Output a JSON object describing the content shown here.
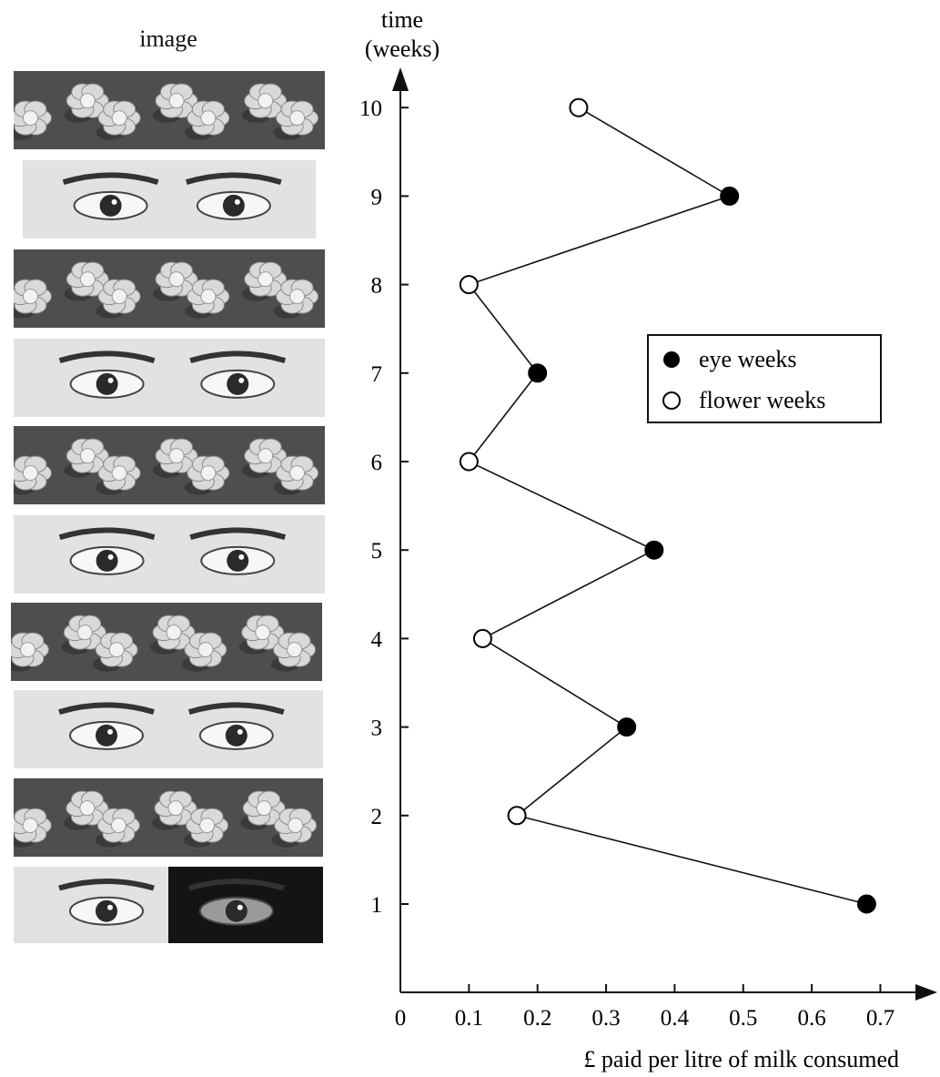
{
  "image_column": {
    "title": "image",
    "strips": [
      {
        "week": 10,
        "kind": "flower"
      },
      {
        "week": 9,
        "kind": "eye"
      },
      {
        "week": 8,
        "kind": "flower"
      },
      {
        "week": 7,
        "kind": "eye"
      },
      {
        "week": 6,
        "kind": "flower"
      },
      {
        "week": 5,
        "kind": "eye"
      },
      {
        "week": 4,
        "kind": "flower"
      },
      {
        "week": 3,
        "kind": "eye"
      },
      {
        "week": 2,
        "kind": "flower"
      },
      {
        "week": 1,
        "kind": "eye"
      }
    ]
  },
  "chart_data": {
    "type": "line",
    "ylabel_line1": "time",
    "ylabel_line2": "(weeks)",
    "xlabel": "£ paid per litre of milk consumed",
    "xlim": [
      0,
      0.7
    ],
    "ylim": [
      0,
      10
    ],
    "xticks": [
      "0",
      "0.1",
      "0.2",
      "0.3",
      "0.4",
      "0.5",
      "0.6",
      "0.7"
    ],
    "yticks": [
      "1",
      "2",
      "3",
      "4",
      "5",
      "6",
      "7",
      "8",
      "9",
      "10"
    ],
    "grid": false,
    "legend_position": "right",
    "points": [
      {
        "week": 1,
        "value": 0.68,
        "series": "eye weeks"
      },
      {
        "week": 2,
        "value": 0.17,
        "series": "flower weeks"
      },
      {
        "week": 3,
        "value": 0.33,
        "series": "eye weeks"
      },
      {
        "week": 4,
        "value": 0.12,
        "series": "flower weeks"
      },
      {
        "week": 5,
        "value": 0.37,
        "series": "eye weeks"
      },
      {
        "week": 6,
        "value": 0.1,
        "series": "flower weeks"
      },
      {
        "week": 7,
        "value": 0.2,
        "series": "eye weeks"
      },
      {
        "week": 8,
        "value": 0.1,
        "series": "flower weeks"
      },
      {
        "week": 9,
        "value": 0.48,
        "series": "eye weeks"
      },
      {
        "week": 10,
        "value": 0.26,
        "series": "flower weeks"
      }
    ],
    "series": [
      {
        "name": "eye weeks",
        "marker": "filled-circle",
        "color": "#000000"
      },
      {
        "name": "flower weeks",
        "marker": "open-circle",
        "color": "#000000"
      }
    ]
  }
}
